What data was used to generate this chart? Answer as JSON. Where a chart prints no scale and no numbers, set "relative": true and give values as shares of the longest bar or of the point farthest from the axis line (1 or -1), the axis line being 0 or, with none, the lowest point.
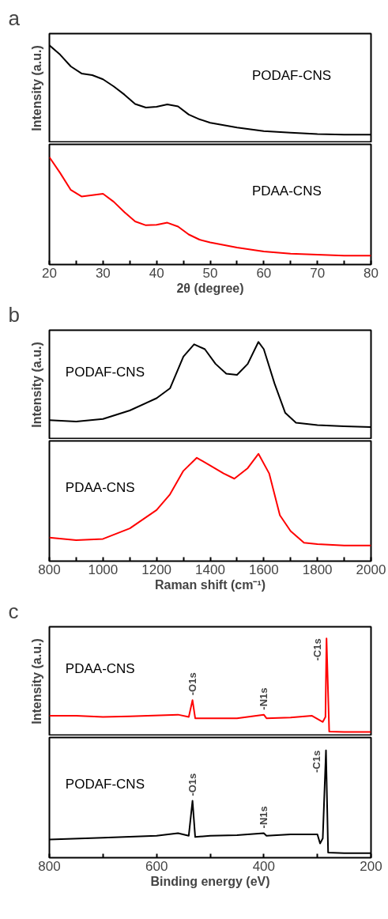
{
  "chart_data": [
    {
      "type": "line",
      "title": "a",
      "ylabel": "Intensity (a.u.)",
      "relative": true,
      "tick_labels": false,
      "xlim": [
        20,
        80
      ],
      "series": [
        {
          "name": "PODAF-CNS",
          "color": "#000000",
          "x": [
            20,
            22,
            24,
            26,
            28,
            30,
            32,
            34,
            36,
            38,
            40,
            42,
            44,
            46,
            48,
            50,
            55,
            60,
            65,
            70,
            75,
            80
          ],
          "values": [
            1,
            0.904,
            0.783,
            0.711,
            0.694,
            0.651,
            0.578,
            0.494,
            0.398,
            0.361,
            0.369,
            0.393,
            0.373,
            0.289,
            0.241,
            0.205,
            0.157,
            0.12,
            0.104,
            0.089,
            0.084,
            0.084
          ]
        }
      ]
    },
    {
      "type": "line",
      "xlabel": "2θ (degree)",
      "relative": true,
      "tick_labels": "x",
      "xlim": [
        20,
        80
      ],
      "xticks": [
        20,
        {
          "value": 25,
          "label": null
        },
        30,
        {
          "value": 35,
          "label": null
        },
        40,
        {
          "value": 45,
          "label": null
        },
        50,
        {
          "value": 55,
          "label": null
        },
        60,
        {
          "value": 65,
          "label": null
        },
        70,
        {
          "value": 75,
          "label": null
        },
        80
      ],
      "series": [
        {
          "name": "PDAA-CNS",
          "color": "#ff0000",
          "x": [
            20,
            22,
            24,
            26,
            28,
            30,
            32,
            34,
            36,
            38,
            40,
            42,
            44,
            46,
            48,
            50,
            55,
            60,
            65,
            70,
            75,
            80
          ],
          "values": [
            1,
            0.854,
            0.695,
            0.634,
            0.646,
            0.659,
            0.585,
            0.488,
            0.402,
            0.366,
            0.371,
            0.39,
            0.354,
            0.28,
            0.232,
            0.207,
            0.159,
            0.122,
            0.102,
            0.093,
            0.083,
            0.083
          ]
        }
      ]
    },
    {
      "type": "line",
      "title": "b",
      "ylabel": "Intensity (a.u.)",
      "relative": true,
      "tick_labels": false,
      "xlim": [
        800,
        2000
      ],
      "series": [
        {
          "name": "PODAF-CNS",
          "color": "#000000",
          "x": [
            800,
            900,
            1000,
            1100,
            1200,
            1250,
            1300,
            1340,
            1380,
            1420,
            1460,
            1500,
            1540,
            1580,
            1600,
            1640,
            1680,
            1720,
            1800,
            1900,
            2000
          ],
          "values": [
            0.196,
            0.183,
            0.209,
            0.296,
            0.422,
            0.523,
            0.849,
            0.975,
            0.925,
            0.774,
            0.673,
            0.661,
            0.774,
            1,
            0.925,
            0.573,
            0.271,
            0.171,
            0.146,
            0.133,
            0.126
          ]
        }
      ]
    },
    {
      "type": "line",
      "xlabel": "Raman shift (cm⁻¹)",
      "relative": true,
      "tick_labels": "x",
      "xlim": [
        800,
        2000
      ],
      "xticks": [
        800,
        {
          "value": 900,
          "label": null
        },
        1000,
        {
          "value": 1100,
          "label": null
        },
        1200,
        {
          "value": 1300,
          "label": null
        },
        1400,
        {
          "value": 1500,
          "label": null
        },
        1600,
        {
          "value": 1700,
          "label": null
        },
        1800,
        {
          "value": 1900,
          "label": null
        },
        2000
      ],
      "series": [
        {
          "name": "PDAA-CNS",
          "color": "#ff0000",
          "x": [
            800,
            900,
            1000,
            1100,
            1200,
            1250,
            1300,
            1350,
            1400,
            1450,
            1490,
            1540,
            1580,
            1620,
            1660,
            1700,
            1750,
            1800,
            1900,
            2000
          ],
          "values": [
            0.22,
            0.195,
            0.207,
            0.305,
            0.476,
            0.622,
            0.841,
            0.963,
            0.89,
            0.817,
            0.768,
            0.866,
            1,
            0.817,
            0.427,
            0.28,
            0.171,
            0.159,
            0.146,
            0.146
          ]
        }
      ]
    },
    {
      "type": "line",
      "title": "c",
      "ylabel": "Intensity (a.u.)",
      "relative": true,
      "tick_labels": false,
      "xlim": [
        800,
        200
      ],
      "annotations": [
        {
          "text": "-O1s",
          "x": 533,
          "y": 0.367
        },
        {
          "text": "-N1s",
          "x": 400,
          "y": 0.218
        },
        {
          "text": "-C1s",
          "x": 283,
          "y": 1
        }
      ],
      "series": [
        {
          "name": "PDAA-CNS",
          "color": "#ff0000",
          "x": [
            800,
            750,
            700,
            650,
            560,
            540,
            533,
            528,
            500,
            450,
            400,
            395,
            350,
            310,
            290,
            285,
            283,
            278,
            250,
            200
          ],
          "values": [
            0.206,
            0.206,
            0.194,
            0.201,
            0.218,
            0.194,
            0.367,
            0.181,
            0.181,
            0.181,
            0.218,
            0.181,
            0.189,
            0.206,
            0.144,
            0.194,
            1,
            0.045,
            0.04,
            0.04
          ]
        }
      ]
    },
    {
      "type": "line",
      "xlabel": "Binding energy (eV)",
      "relative": true,
      "tick_labels": "x",
      "xlim": [
        800,
        200
      ],
      "xticks": [
        800,
        {
          "value": 700,
          "label": null
        },
        600,
        {
          "value": 500,
          "label": null
        },
        400,
        {
          "value": 300,
          "label": null
        },
        200
      ],
      "annotations": [
        {
          "text": "-O1s",
          "x": 533,
          "y": 0.53
        },
        {
          "text": "-N1s",
          "x": 400,
          "y": 0.229
        },
        {
          "text": "-C1s",
          "x": 284,
          "y": 1
        }
      ],
      "series": [
        {
          "name": "PODAF-CNS",
          "color": "#000000",
          "x": [
            800,
            700,
            600,
            560,
            540,
            533,
            528,
            500,
            450,
            400,
            395,
            350,
            300,
            295,
            290,
            284,
            280,
            250,
            200
          ],
          "values": [
            0.169,
            0.186,
            0.205,
            0.229,
            0.205,
            0.53,
            0.193,
            0.205,
            0.21,
            0.229,
            0.205,
            0.217,
            0.217,
            0.133,
            0.181,
            1,
            0.048,
            0.043,
            0.043
          ]
        }
      ]
    }
  ]
}
